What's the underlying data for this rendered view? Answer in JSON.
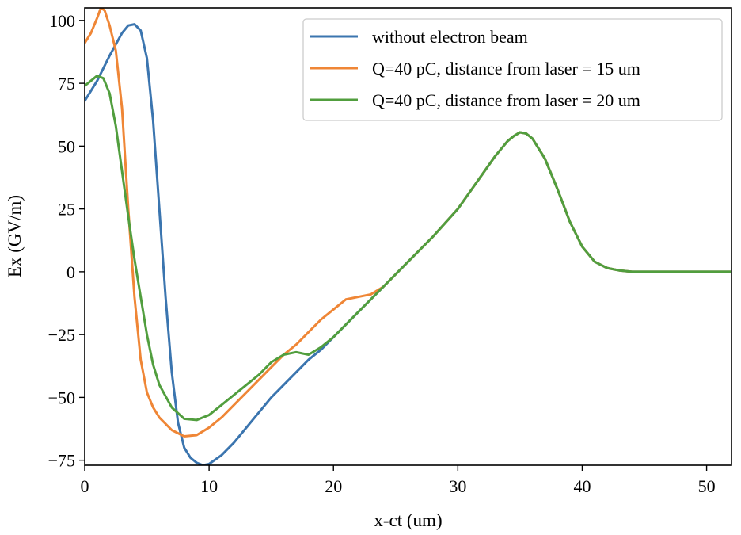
{
  "chart_data": {
    "type": "line",
    "title": "",
    "xlabel": "x-ct (um)",
    "ylabel": "Ex (GV/m)",
    "xlim": [
      0,
      52
    ],
    "ylim": [
      -77,
      105
    ],
    "xticks": [
      0,
      10,
      20,
      30,
      40,
      50
    ],
    "xtick_labels": [
      "0",
      "10",
      "20",
      "30",
      "40",
      "50"
    ],
    "yticks": [
      -75,
      -50,
      -25,
      0,
      25,
      50,
      75,
      100
    ],
    "ytick_labels": [
      "−75",
      "−50",
      "−25",
      "0",
      "25",
      "50",
      "75",
      "100"
    ],
    "grid": false,
    "legend_position": "top-right",
    "series": [
      {
        "name": "without electron beam",
        "color": "#3b75af",
        "points": [
          [
            0,
            68
          ],
          [
            1,
            76
          ],
          [
            2,
            86
          ],
          [
            3,
            95
          ],
          [
            3.5,
            98
          ],
          [
            4,
            98.5
          ],
          [
            4.5,
            96
          ],
          [
            5,
            85
          ],
          [
            5.5,
            60
          ],
          [
            6,
            25
          ],
          [
            6.5,
            -10
          ],
          [
            7,
            -40
          ],
          [
            7.5,
            -60
          ],
          [
            8,
            -70
          ],
          [
            8.5,
            -74
          ],
          [
            9,
            -76
          ],
          [
            9.5,
            -77
          ],
          [
            10,
            -76.5
          ],
          [
            11,
            -73
          ],
          [
            12,
            -68
          ],
          [
            13,
            -62
          ],
          [
            14,
            -56
          ],
          [
            15,
            -50
          ],
          [
            16,
            -45
          ],
          [
            17,
            -40
          ],
          [
            18,
            -35
          ],
          [
            19,
            -31
          ],
          [
            20,
            -26
          ],
          [
            22,
            -16
          ],
          [
            24,
            -6
          ],
          [
            26,
            4
          ],
          [
            28,
            14
          ],
          [
            30,
            25
          ],
          [
            31,
            32
          ],
          [
            32,
            39
          ],
          [
            33,
            46
          ],
          [
            34,
            52
          ],
          [
            34.5,
            54
          ],
          [
            35,
            55.5
          ],
          [
            35.5,
            55
          ],
          [
            36,
            53
          ],
          [
            37,
            45
          ],
          [
            38,
            33
          ],
          [
            39,
            20
          ],
          [
            40,
            10
          ],
          [
            41,
            4
          ],
          [
            42,
            1.5
          ],
          [
            43,
            0.5
          ],
          [
            44,
            0
          ],
          [
            46,
            0
          ],
          [
            48,
            0
          ],
          [
            50,
            0
          ],
          [
            52,
            0
          ]
        ]
      },
      {
        "name": "Q=40 pC, distance from laser = 15 um",
        "color": "#ef8636",
        "points": [
          [
            0,
            91
          ],
          [
            0.5,
            95
          ],
          [
            1,
            101
          ],
          [
            1.3,
            105
          ],
          [
            1.6,
            104
          ],
          [
            2,
            98
          ],
          [
            2.5,
            88
          ],
          [
            3,
            65
          ],
          [
            3.5,
            25
          ],
          [
            4,
            -10
          ],
          [
            4.5,
            -35
          ],
          [
            5,
            -48
          ],
          [
            5.5,
            -54
          ],
          [
            6,
            -58
          ],
          [
            7,
            -63
          ],
          [
            8,
            -65.5
          ],
          [
            9,
            -65
          ],
          [
            10,
            -62
          ],
          [
            11,
            -58
          ],
          [
            12,
            -53
          ],
          [
            13,
            -48
          ],
          [
            14,
            -43
          ],
          [
            15,
            -38
          ],
          [
            16,
            -33
          ],
          [
            17,
            -29
          ],
          [
            18,
            -24
          ],
          [
            19,
            -19
          ],
          [
            20,
            -15
          ],
          [
            21,
            -11
          ],
          [
            22,
            -10
          ],
          [
            23,
            -9
          ],
          [
            24,
            -6
          ],
          [
            26,
            4
          ],
          [
            28,
            14
          ],
          [
            30,
            25
          ],
          [
            31,
            32
          ],
          [
            32,
            39
          ],
          [
            33,
            46
          ],
          [
            34,
            52
          ],
          [
            34.5,
            54
          ],
          [
            35,
            55.5
          ],
          [
            35.5,
            55
          ],
          [
            36,
            53
          ],
          [
            37,
            45
          ],
          [
            38,
            33
          ],
          [
            39,
            20
          ],
          [
            40,
            10
          ],
          [
            41,
            4
          ],
          [
            42,
            1.5
          ],
          [
            43,
            0.5
          ],
          [
            44,
            0
          ],
          [
            46,
            0
          ],
          [
            48,
            0
          ],
          [
            50,
            0
          ],
          [
            52,
            0
          ]
        ]
      },
      {
        "name": "Q=40 pC, distance from laser = 20 um",
        "color": "#519e3e",
        "points": [
          [
            0,
            74
          ],
          [
            0.5,
            76
          ],
          [
            1,
            78
          ],
          [
            1.5,
            77
          ],
          [
            2,
            71
          ],
          [
            2.5,
            58
          ],
          [
            3,
            40
          ],
          [
            3.5,
            22
          ],
          [
            4,
            5
          ],
          [
            4.5,
            -10
          ],
          [
            5,
            -25
          ],
          [
            5.5,
            -37
          ],
          [
            6,
            -45
          ],
          [
            7,
            -54
          ],
          [
            8,
            -58.5
          ],
          [
            9,
            -59
          ],
          [
            10,
            -57
          ],
          [
            11,
            -53
          ],
          [
            12,
            -49
          ],
          [
            13,
            -45
          ],
          [
            14,
            -41
          ],
          [
            15,
            -36
          ],
          [
            16,
            -33
          ],
          [
            17,
            -32
          ],
          [
            18,
            -33
          ],
          [
            19,
            -30
          ],
          [
            20,
            -26
          ],
          [
            22,
            -16
          ],
          [
            24,
            -6
          ],
          [
            26,
            4
          ],
          [
            28,
            14
          ],
          [
            30,
            25
          ],
          [
            31,
            32
          ],
          [
            32,
            39
          ],
          [
            33,
            46
          ],
          [
            34,
            52
          ],
          [
            34.5,
            54
          ],
          [
            35,
            55.5
          ],
          [
            35.5,
            55
          ],
          [
            36,
            53
          ],
          [
            37,
            45
          ],
          [
            38,
            33
          ],
          [
            39,
            20
          ],
          [
            40,
            10
          ],
          [
            41,
            4
          ],
          [
            42,
            1.5
          ],
          [
            43,
            0.5
          ],
          [
            44,
            0
          ],
          [
            46,
            0
          ],
          [
            48,
            0
          ],
          [
            50,
            0
          ],
          [
            52,
            0
          ]
        ]
      }
    ]
  }
}
